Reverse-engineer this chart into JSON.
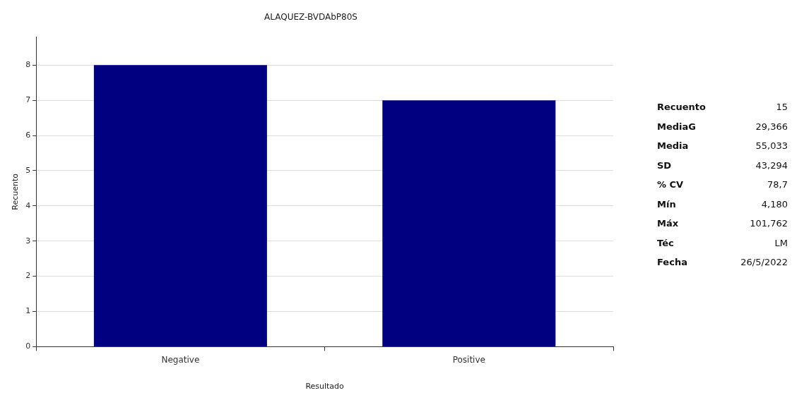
{
  "chart_data": [
    {
      "type": "bar",
      "title": "ALAQUEZ-BVDAbP80S",
      "xlabel": "Resultado",
      "ylabel": "Recuento",
      "categories": [
        "Negative",
        "Positive"
      ],
      "values": [
        8,
        7
      ],
      "color": "#000080",
      "ylim": [
        0,
        8.8
      ],
      "yticks": [
        0,
        1,
        2,
        3,
        4,
        5,
        6,
        7,
        8
      ],
      "grid": "y",
      "legend": false
    },
    {
      "type": "other",
      "annotations": [
        "Recuento",
        "15",
        "MediaG",
        "29,366",
        "Media",
        "55,033",
        "SD",
        "43,294",
        "% CV",
        "78,7",
        "Mín",
        "4,180",
        "Máx",
        "101,762",
        "Téc",
        "LM",
        "Fecha",
        "26/5/2022"
      ]
    }
  ]
}
